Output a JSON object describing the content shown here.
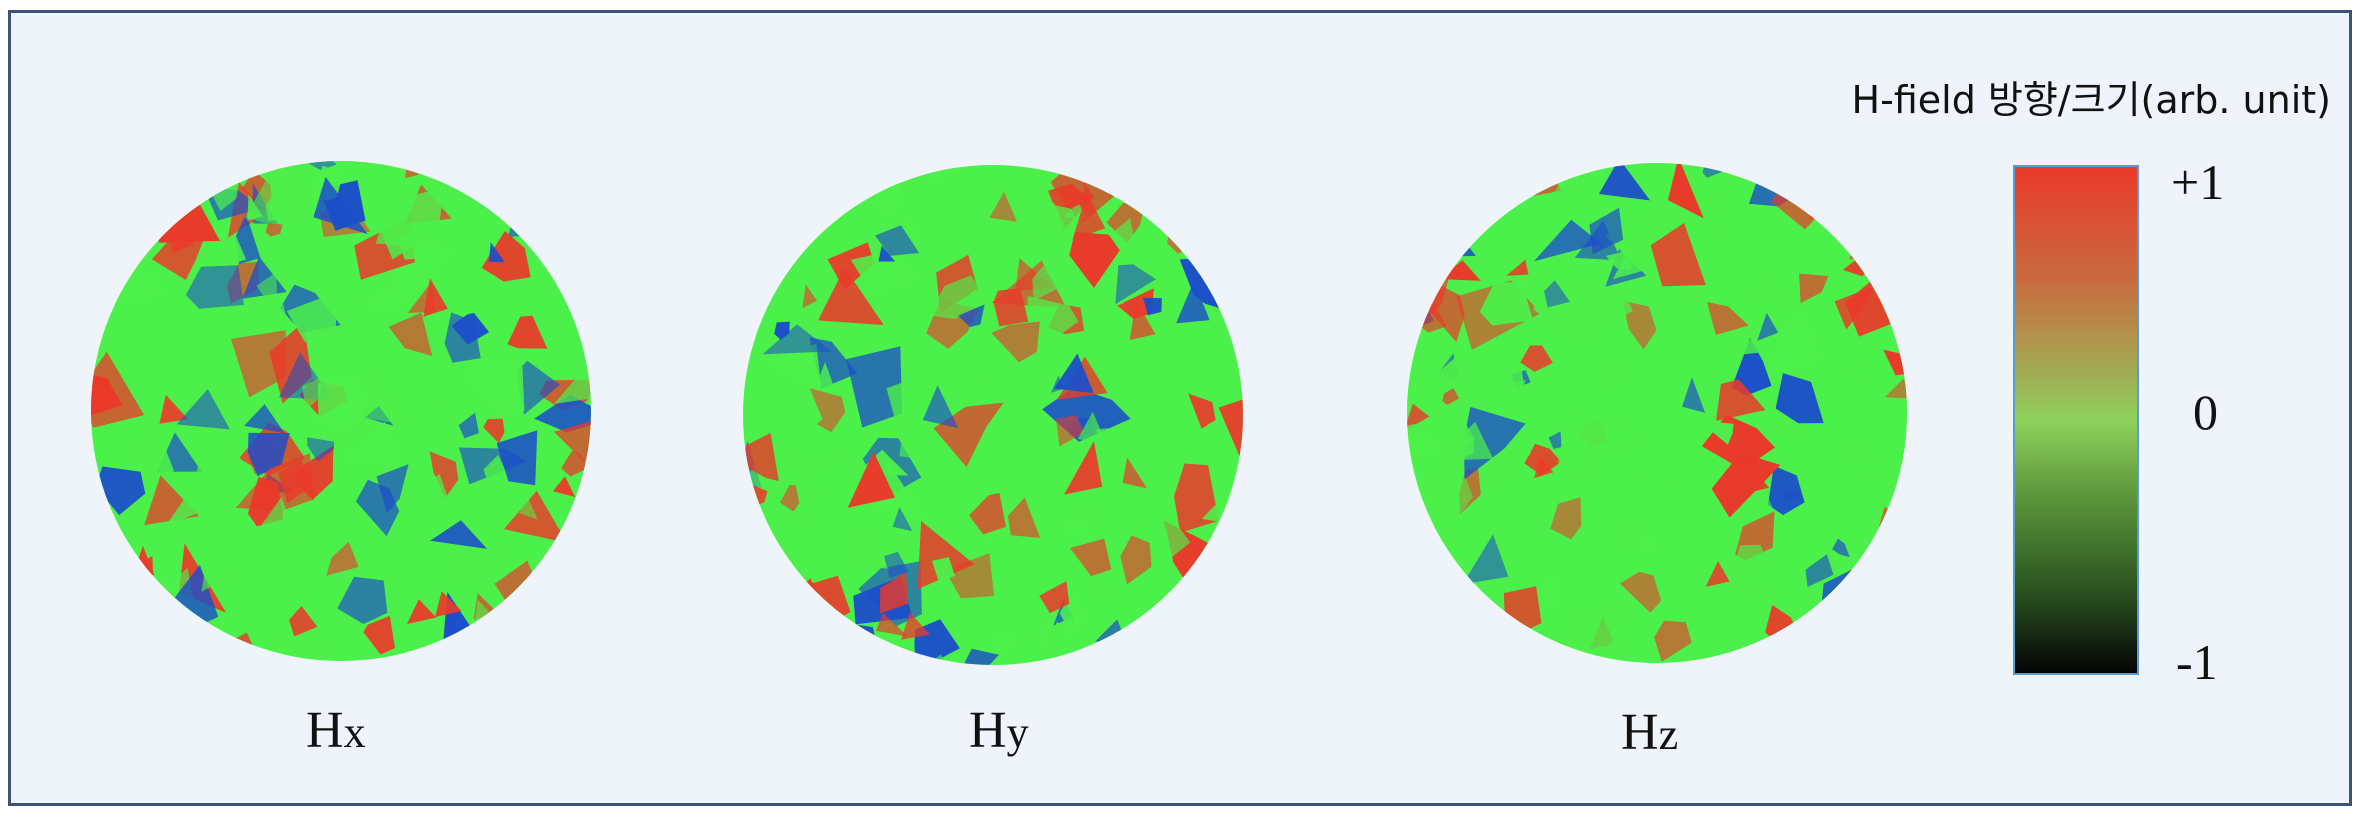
{
  "panels": [
    {
      "label_main": "H",
      "label_sub": "x"
    },
    {
      "label_main": "H",
      "label_sub": "y"
    },
    {
      "label_main": "H",
      "label_sub": "z"
    }
  ],
  "legend": {
    "title": "H-field 방향/크기(arb. unit)",
    "tick_max": "+1",
    "tick_mid": "0",
    "tick_min": "-1"
  },
  "colors": {
    "positive": "#ea3a2a",
    "zero": "#4cf04a",
    "negative": "#1c4fc9",
    "background": "#eff4fa",
    "frame": "#3b5577"
  }
}
